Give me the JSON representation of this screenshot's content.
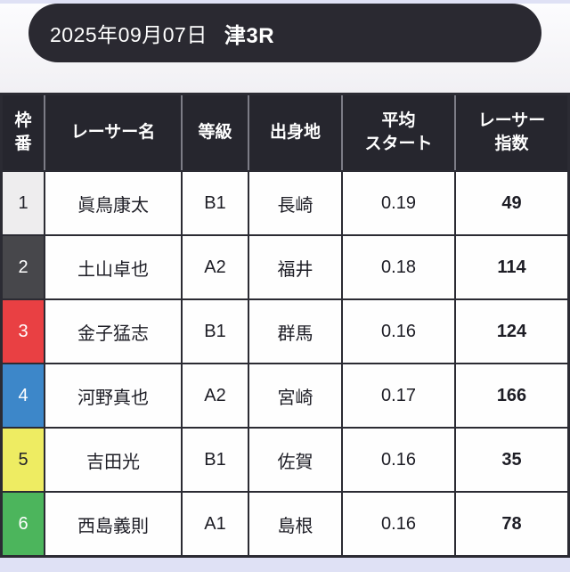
{
  "header": {
    "date": "2025年09月07日",
    "race": "津3R"
  },
  "table": {
    "columns": [
      {
        "label": "枠\n番"
      },
      {
        "label": "レーサー名"
      },
      {
        "label": "等級"
      },
      {
        "label": "出身地"
      },
      {
        "label": "平均\nスタート"
      },
      {
        "label": "レーサー\n指数"
      }
    ],
    "rows": [
      {
        "waku": "1",
        "name": "眞鳥康太",
        "grade": "B1",
        "origin": "長崎",
        "avg_start": "0.19",
        "index": "49",
        "bg": "#eeedee",
        "fg": "#23232b"
      },
      {
        "waku": "2",
        "name": "土山卓也",
        "grade": "A2",
        "origin": "福井",
        "avg_start": "0.18",
        "index": "114",
        "bg": "#47474b",
        "fg": "#ffffff"
      },
      {
        "waku": "3",
        "name": "金子猛志",
        "grade": "B1",
        "origin": "群馬",
        "avg_start": "0.16",
        "index": "124",
        "bg": "#e94043",
        "fg": "#ffffff"
      },
      {
        "waku": "4",
        "name": "河野真也",
        "grade": "A2",
        "origin": "宮崎",
        "avg_start": "0.17",
        "index": "166",
        "bg": "#3d87c9",
        "fg": "#ffffff"
      },
      {
        "waku": "5",
        "name": "吉田光",
        "grade": "B1",
        "origin": "佐賀",
        "avg_start": "0.16",
        "index": "35",
        "bg": "#eeec62",
        "fg": "#23232b"
      },
      {
        "waku": "6",
        "name": "西島義則",
        "grade": "A1",
        "origin": "島根",
        "avg_start": "0.16",
        "index": "78",
        "bg": "#4cb55c",
        "fg": "#ffffff"
      }
    ]
  },
  "colors": {
    "pill_bg": "#2a2931",
    "table_header_bg": "#26262e",
    "border": "#2b2b33",
    "footer_strip": "#dfe1f5"
  }
}
